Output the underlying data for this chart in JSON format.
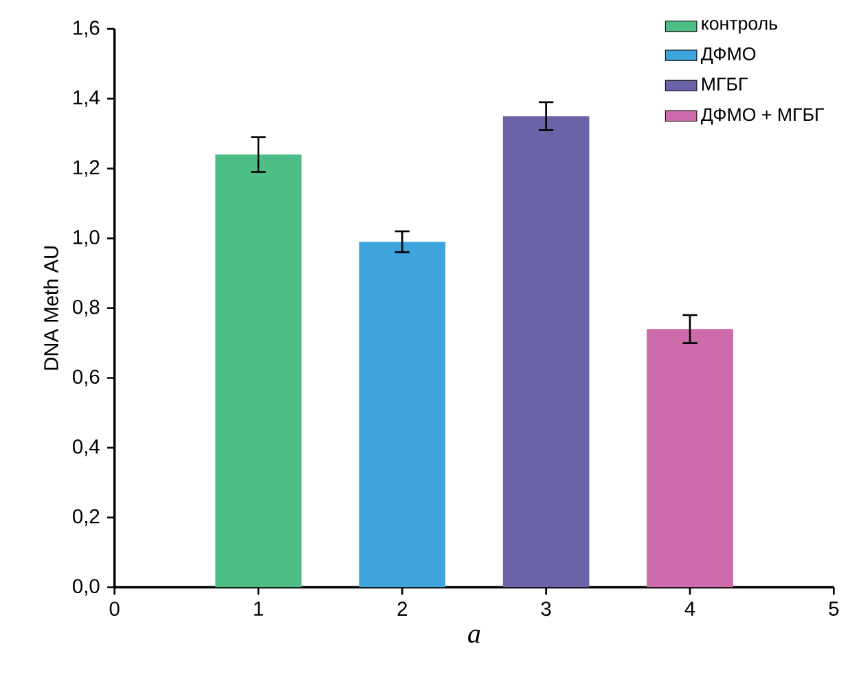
{
  "chart_data": {
    "type": "bar",
    "xlabel": "a",
    "ylabel": "DNA Meth AU",
    "series": [
      {
        "name": "контроль",
        "color": "#4dbf86",
        "x": [
          1
        ],
        "values": [
          1.24
        ],
        "errors": [
          0.05
        ]
      },
      {
        "name": "ДФМО",
        "color": "#3fa4dc",
        "x": [
          2
        ],
        "values": [
          0.99
        ],
        "errors": [
          0.03
        ]
      },
      {
        "name": "МГБГ",
        "color": "#6a63a8",
        "x": [
          3
        ],
        "values": [
          1.35
        ],
        "errors": [
          0.04
        ]
      },
      {
        "name": "ДФМО + МГБГ",
        "color": "#cc6aaa",
        "x": [
          4
        ],
        "values": [
          0.74
        ],
        "errors": [
          0.04
        ]
      }
    ],
    "xlim": [
      0,
      5
    ],
    "xticks": [
      0,
      1,
      2,
      3,
      4,
      5
    ],
    "ylim": [
      0,
      1.6
    ],
    "yticks": [
      {
        "value": 0,
        "label": "0,0"
      },
      {
        "value": 0.2,
        "label": "0,2"
      },
      {
        "value": 0.4,
        "label": "0,4"
      },
      {
        "value": 0.6,
        "label": "0,6"
      },
      {
        "value": 0.8,
        "label": "0,8"
      },
      {
        "value": 1.0,
        "label": "1,0"
      },
      {
        "value": 1.2,
        "label": "1,2"
      },
      {
        "value": 1.4,
        "label": "1,4"
      },
      {
        "value": 1.6,
        "label": "1,6"
      }
    ],
    "legend": "top right"
  }
}
